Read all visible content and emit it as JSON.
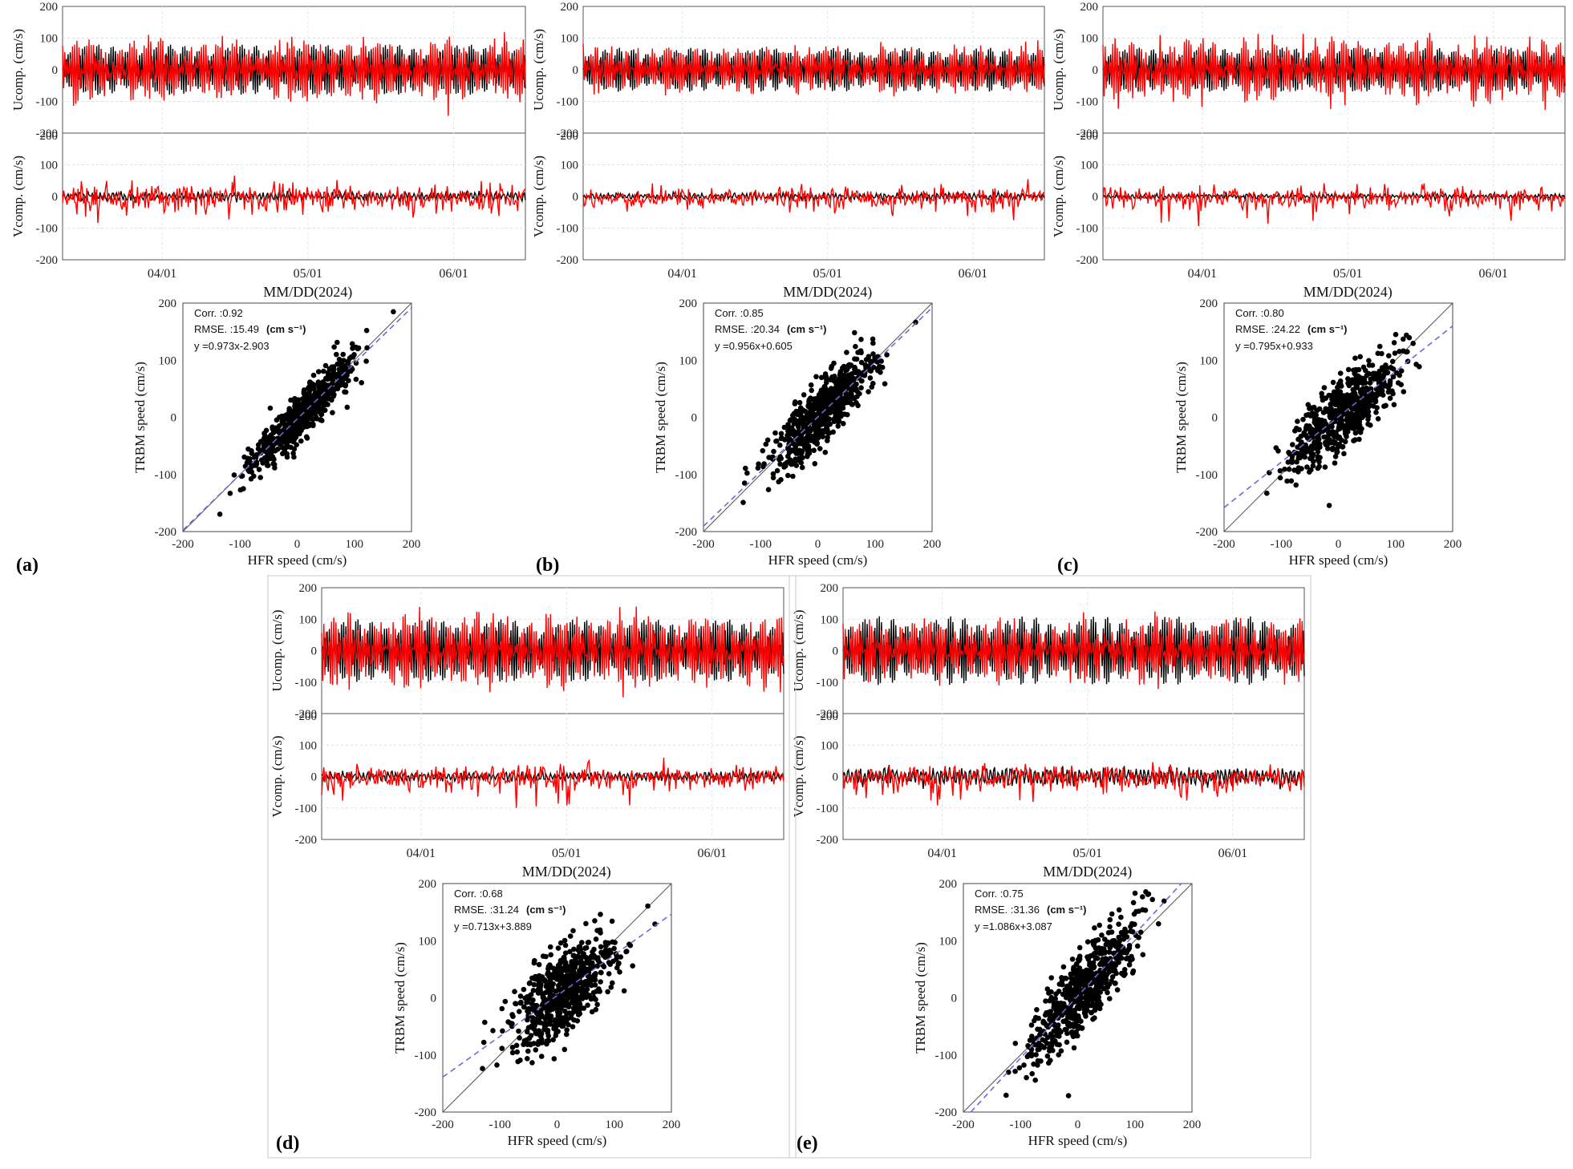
{
  "figure": {
    "time_axis_label": "MM/DD(2024)",
    "u_label": "Ucomp. (cm/s)",
    "v_label": "Vcomp. (cm/s)",
    "scatter_x_label": "HFR speed (cm/s)",
    "scatter_y_label": "TRBM speed (cm/s)",
    "colors": {
      "hfr_series": "#000000",
      "trbm_series": "#ff0000",
      "fit_line": "#6b6bd6",
      "one_to_one": "#555555"
    }
  },
  "chart_data": [
    {
      "panel": "(a)",
      "type": "line",
      "x": [
        "04/01",
        "05/01",
        "06/01"
      ],
      "series": [
        {
          "name": "HFR",
          "u_amplitude": 80,
          "v_amplitude": 20
        },
        {
          "name": "TRBM",
          "u_amplitude": 90,
          "v_amplitude": 40
        }
      ],
      "ylim": [
        -200,
        200
      ],
      "yticks": [
        200,
        100,
        0,
        -100,
        -200
      ]
    },
    {
      "panel": "(a)",
      "type": "scatter",
      "xlim": [
        -200,
        200
      ],
      "ylim": [
        -200,
        200
      ],
      "xticks": [
        -200,
        -100,
        0,
        100,
        200
      ],
      "yticks": [
        200,
        100,
        0,
        -100,
        -200
      ],
      "corr": "Corr. :0.92",
      "rmse": "RMSE. :15.49",
      "unit": "(cm s⁻¹)",
      "fit_text": "y =0.973x-2.903",
      "slope": 0.973,
      "intercept": -2.903,
      "r": 0.92
    },
    {
      "panel": "(b)",
      "type": "line",
      "x": [
        "04/01",
        "05/01",
        "06/01"
      ],
      "series": [
        {
          "name": "HFR",
          "u_amplitude": 70,
          "v_amplitude": 15
        },
        {
          "name": "TRBM",
          "u_amplitude": 70,
          "v_amplitude": 30
        }
      ],
      "ylim": [
        -200,
        200
      ],
      "yticks": [
        200,
        100,
        0,
        -100,
        -200
      ]
    },
    {
      "panel": "(b)",
      "type": "scatter",
      "xlim": [
        -200,
        200
      ],
      "ylim": [
        -200,
        200
      ],
      "xticks": [
        -200,
        -100,
        0,
        100,
        200
      ],
      "yticks": [
        200,
        100,
        0,
        -100,
        -200
      ],
      "corr": "Corr. :0.85",
      "rmse": "RMSE. :20.34",
      "unit": "(cm s⁻¹)",
      "fit_text": "y =0.956x+0.605",
      "slope": 0.956,
      "intercept": 0.605,
      "r": 0.85
    },
    {
      "panel": "(c)",
      "type": "line",
      "x": [
        "04/01",
        "05/01",
        "06/01"
      ],
      "series": [
        {
          "name": "HFR",
          "u_amplitude": 70,
          "v_amplitude": 12
        },
        {
          "name": "TRBM",
          "u_amplitude": 95,
          "v_amplitude": 30
        }
      ],
      "ylim": [
        -200,
        200
      ],
      "yticks": [
        200,
        100,
        0,
        -100,
        -200
      ]
    },
    {
      "panel": "(c)",
      "type": "scatter",
      "xlim": [
        -200,
        200
      ],
      "ylim": [
        -200,
        200
      ],
      "xticks": [
        -200,
        -100,
        0,
        100,
        200
      ],
      "yticks": [
        200,
        100,
        0,
        -100,
        -200
      ],
      "corr": "Corr. :0.80",
      "rmse": "RMSE. :24.22",
      "unit": "(cm s⁻¹)",
      "fit_text": "y =0.795x+0.933",
      "slope": 0.795,
      "intercept": 0.933,
      "r": 0.8
    },
    {
      "panel": "(d)",
      "type": "line",
      "x": [
        "04/01",
        "05/01",
        "06/01"
      ],
      "series": [
        {
          "name": "HFR",
          "u_amplitude": 100,
          "v_amplitude": 20
        },
        {
          "name": "TRBM",
          "u_amplitude": 110,
          "v_amplitude": 35
        }
      ],
      "ylim": [
        -200,
        200
      ],
      "yticks": [
        200,
        100,
        0,
        -100,
        -200
      ]
    },
    {
      "panel": "(d)",
      "type": "scatter",
      "xlim": [
        -200,
        200
      ],
      "ylim": [
        -200,
        200
      ],
      "xticks": [
        -200,
        -100,
        0,
        100,
        200
      ],
      "yticks": [
        200,
        100,
        0,
        -100,
        -200
      ],
      "corr": "Corr. :0.68",
      "rmse": "RMSE. :31.24",
      "unit": "(cm s⁻¹)",
      "fit_text": "y =0.713x+3.889",
      "slope": 0.713,
      "intercept": 3.889,
      "r": 0.68
    },
    {
      "panel": "(e)",
      "type": "line",
      "x": [
        "04/01",
        "05/01",
        "06/01"
      ],
      "series": [
        {
          "name": "HFR",
          "u_amplitude": 110,
          "v_amplitude": 40
        },
        {
          "name": "TRBM",
          "u_amplitude": 90,
          "v_amplitude": 35
        }
      ],
      "ylim": [
        -200,
        200
      ],
      "yticks": [
        200,
        100,
        0,
        -100,
        -200
      ]
    },
    {
      "panel": "(e)",
      "type": "scatter",
      "xlim": [
        -200,
        200
      ],
      "ylim": [
        -200,
        200
      ],
      "xticks": [
        -200,
        -100,
        0,
        100,
        200
      ],
      "yticks": [
        200,
        100,
        0,
        -100,
        -200
      ],
      "corr": "Corr. :0.75",
      "rmse": "RMSE. :31.36",
      "unit": "(cm s⁻¹)",
      "fit_text": "y =1.086x+3.087",
      "slope": 1.086,
      "intercept": 3.087,
      "r": 0.75
    }
  ]
}
